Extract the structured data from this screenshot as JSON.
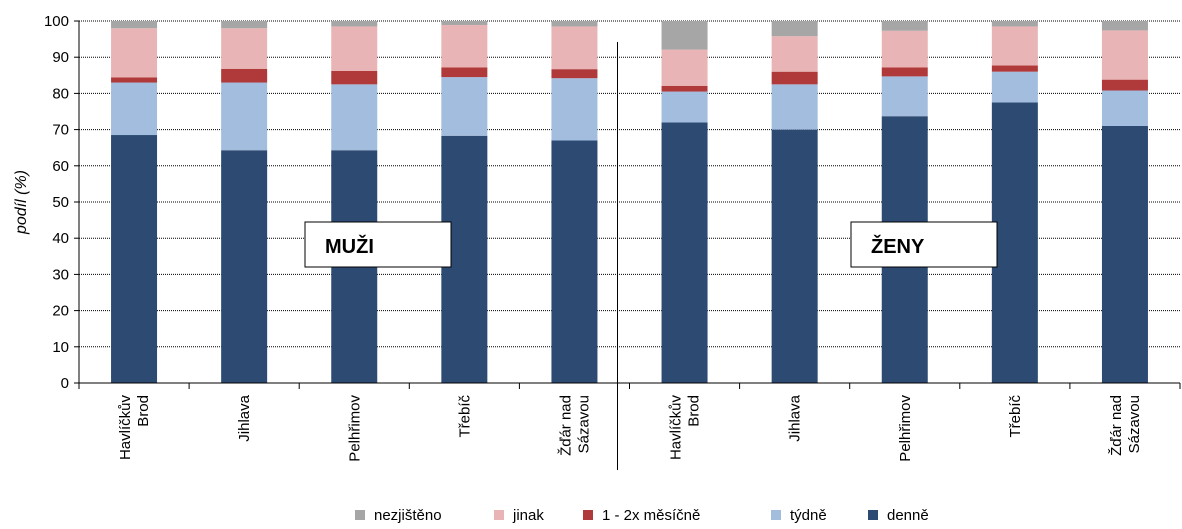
{
  "chart_data": {
    "type": "bar",
    "stacked": true,
    "ylabel": "podíl (%)",
    "ylim": [
      0,
      100
    ],
    "yticks": [
      "0",
      "10",
      "20",
      "30",
      "40",
      "50",
      "60",
      "70",
      "80",
      "90",
      "100"
    ],
    "grid": true,
    "legend_position": "bottom",
    "categories": [
      [
        "Havlíčkův",
        "Brod"
      ],
      [
        "Jihlava"
      ],
      [
        "Pelhřimov"
      ],
      [
        "Třebíč"
      ],
      [
        "Žďár nad",
        "Sázavou"
      ],
      [
        "Havlíčkův",
        "Brod"
      ],
      [
        "Jihlava"
      ],
      [
        "Pelhřimov"
      ],
      [
        "Třebíč"
      ],
      [
        "Žďár nad",
        "Sázavou"
      ]
    ],
    "groups": [
      {
        "label": "MUŽI",
        "categories": [
          0,
          1,
          2,
          3,
          4
        ]
      },
      {
        "label": "ŽENY",
        "categories": [
          5,
          6,
          7,
          8,
          9
        ]
      }
    ],
    "series": [
      {
        "name": "denně",
        "color": "#2c4a72",
        "values": [
          68.5,
          64.3,
          64.3,
          68.3,
          67.0,
          72.0,
          70.0,
          73.7,
          77.5,
          71.0
        ]
      },
      {
        "name": "týdně",
        "color": "#a3bddf",
        "values": [
          14.5,
          18.7,
          18.2,
          16.2,
          17.2,
          8.5,
          12.5,
          11.0,
          8.5,
          9.8
        ]
      },
      {
        "name": "1 - 2x měsíčně",
        "color": "#b03a3a",
        "values": [
          1.4,
          3.8,
          3.7,
          2.7,
          2.5,
          1.6,
          3.5,
          2.5,
          1.7,
          3.0
        ]
      },
      {
        "name": "jinak",
        "color": "#e8b4b5",
        "values": [
          13.6,
          11.2,
          12.3,
          11.7,
          11.8,
          10.0,
          9.8,
          10.1,
          10.8,
          13.6
        ]
      },
      {
        "name": "nezjištěno",
        "color": "#a6a6a6",
        "values": [
          2.0,
          2.0,
          1.5,
          1.1,
          1.5,
          7.9,
          4.2,
          2.7,
          1.5,
          2.6
        ]
      }
    ],
    "legend_order": [
      "nezjištěno",
      "jinak",
      "1 - 2x měsíčně",
      "týdně",
      "denně"
    ]
  }
}
